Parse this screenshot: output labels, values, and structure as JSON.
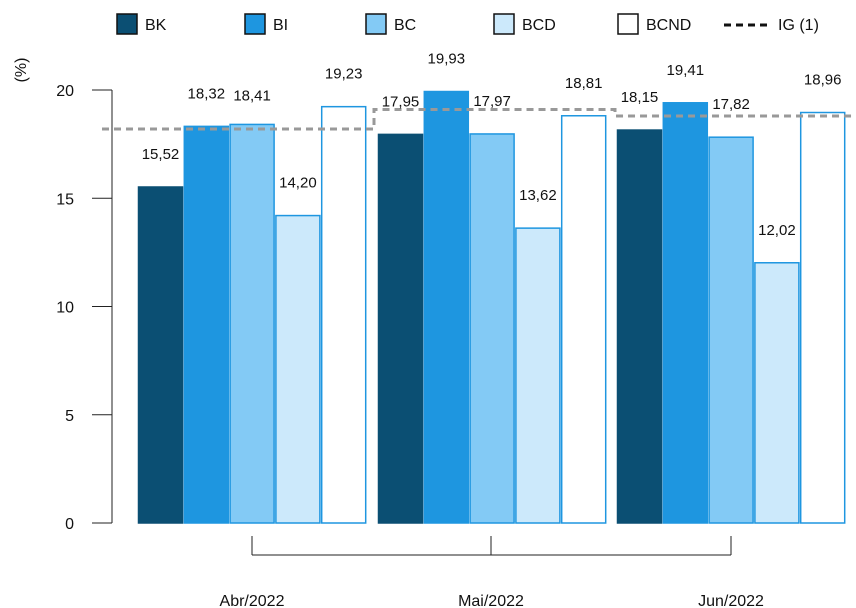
{
  "chart_data": {
    "type": "bar",
    "ylabel": "(%)",
    "ylim": [
      0,
      20
    ],
    "yticks": [
      0,
      5,
      10,
      15,
      20
    ],
    "categories": [
      "Abr/2022",
      "Mai/2022",
      "Jun/2022"
    ],
    "series": [
      {
        "name": "BK",
        "values": [
          15.52,
          17.95,
          18.15
        ],
        "labels": [
          "15,52",
          "17,95",
          "18,15"
        ],
        "fill": "#0b4f73",
        "stroke": "#0b4f73"
      },
      {
        "name": "BI",
        "values": [
          18.32,
          19.93,
          19.41
        ],
        "labels": [
          "18,32",
          "19,93",
          "19,41"
        ],
        "fill": "#1e96e0",
        "stroke": "#1e96e0"
      },
      {
        "name": "BC",
        "values": [
          18.41,
          17.97,
          17.82
        ],
        "labels": [
          "18,41",
          "17,97",
          "17,82"
        ],
        "fill": "#83caf5",
        "stroke": "#1e96e0"
      },
      {
        "name": "BCD",
        "values": [
          14.2,
          13.62,
          12.02
        ],
        "labels": [
          "14,20",
          "13,62",
          "12,02"
        ],
        "fill": "#cce9fb",
        "stroke": "#1e96e0"
      },
      {
        "name": "BCND",
        "values": [
          19.23,
          18.81,
          18.96
        ],
        "labels": [
          "19,23",
          "18,81",
          "18,96"
        ],
        "fill": "#ffffff",
        "stroke": "#1e96e0"
      }
    ],
    "reference_line": {
      "name": "IG (1)",
      "values": [
        18.2,
        19.1,
        18.8
      ],
      "color": "#999999",
      "style": "dashed"
    },
    "legend_placement": "top",
    "grid": false
  }
}
